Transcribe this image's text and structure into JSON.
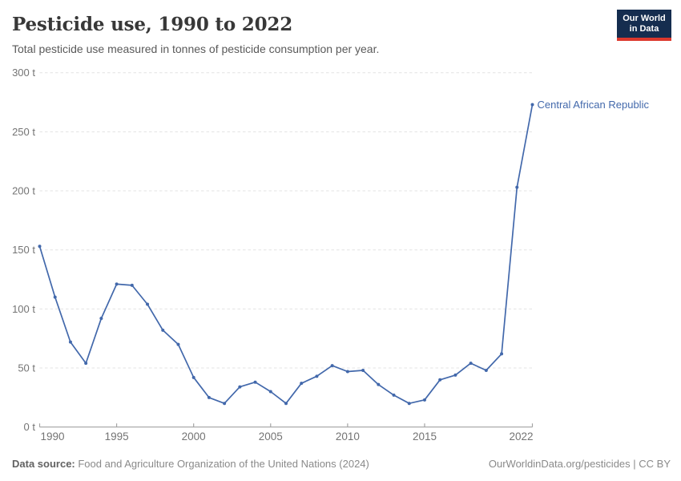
{
  "header": {
    "title": "Pesticide use, 1990 to 2022",
    "subtitle": "Total pesticide use measured in tonnes of pesticide consumption per year.",
    "logo": {
      "line1": "Our World",
      "line2": "in Data"
    }
  },
  "chart_data": {
    "type": "line",
    "title": "Pesticide use, 1990 to 2022",
    "xlabel": "",
    "ylabel": "",
    "xlim": [
      1990,
      2022
    ],
    "ylim": [
      0,
      300
    ],
    "grid": "horizontal-dashed",
    "legend_position": "end-of-line-label",
    "x": [
      1990,
      1991,
      1992,
      1993,
      1994,
      1995,
      1996,
      1997,
      1998,
      1999,
      2000,
      2001,
      2002,
      2003,
      2004,
      2005,
      2006,
      2007,
      2008,
      2009,
      2010,
      2011,
      2012,
      2013,
      2014,
      2015,
      2016,
      2017,
      2018,
      2019,
      2020,
      2021,
      2022
    ],
    "series": [
      {
        "name": "Central African Republic",
        "color": "#4268ab",
        "values": [
          153,
          110,
          72,
          54,
          92,
          121,
          120,
          104,
          82,
          70,
          42,
          25,
          20,
          34,
          38,
          30,
          20,
          37,
          43,
          52,
          47,
          48,
          36,
          27,
          20,
          23,
          40,
          44,
          54,
          48,
          62,
          203,
          273
        ]
      }
    ],
    "y_ticks": [
      {
        "value": 0,
        "label": "0 t"
      },
      {
        "value": 50,
        "label": "50 t"
      },
      {
        "value": 100,
        "label": "100 t"
      },
      {
        "value": 150,
        "label": "150 t"
      },
      {
        "value": 200,
        "label": "200 t"
      },
      {
        "value": 250,
        "label": "250 t"
      },
      {
        "value": 300,
        "label": "300 t"
      }
    ],
    "x_ticks": [
      {
        "year": 1990,
        "label": "1990",
        "anchor": "start"
      },
      {
        "year": 1995,
        "label": "1995",
        "anchor": "middle"
      },
      {
        "year": 2000,
        "label": "2000",
        "anchor": "middle"
      },
      {
        "year": 2005,
        "label": "2005",
        "anchor": "middle"
      },
      {
        "year": 2010,
        "label": "2010",
        "anchor": "middle"
      },
      {
        "year": 2015,
        "label": "2015",
        "anchor": "middle"
      },
      {
        "year": 2022,
        "label": "2022",
        "anchor": "end"
      }
    ]
  },
  "footer": {
    "source_label": "Data source:",
    "source_text": " Food and Agriculture Organization of the United Nations (2024)",
    "right_text": "OurWorldinData.org/pesticides | CC BY"
  },
  "colors": {
    "line": "#4268ab",
    "grid": "#e3e3e3",
    "axis": "#a3a3a3",
    "tick_label": "#747474",
    "logo_bg": "#152d4f",
    "logo_red": "#dc382d"
  }
}
